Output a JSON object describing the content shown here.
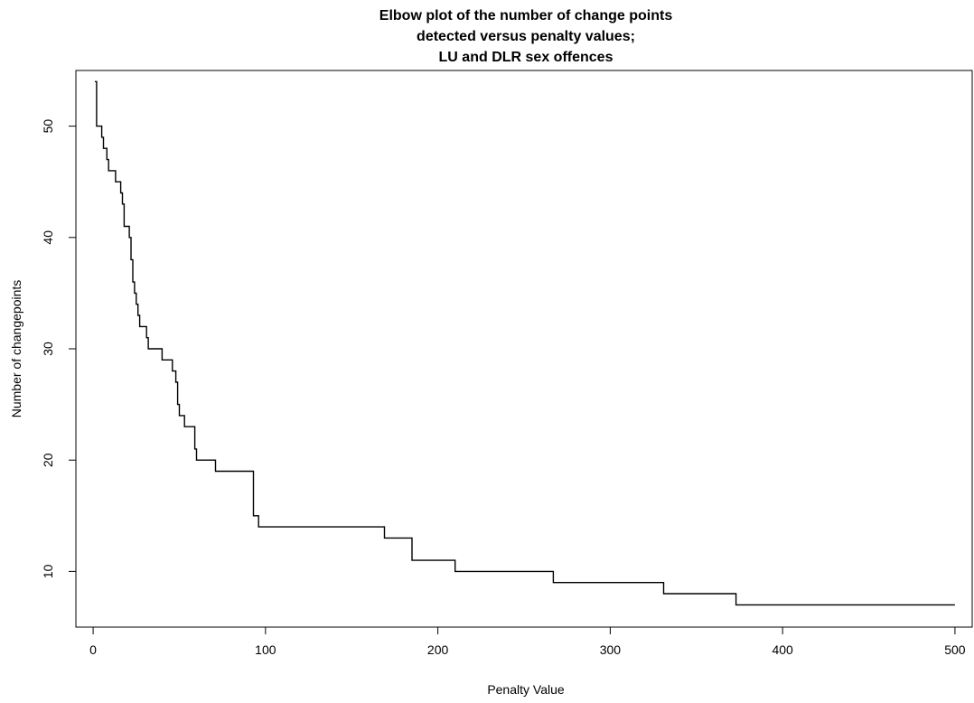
{
  "chart_data": {
    "type": "line",
    "line_style": "step",
    "title_lines": [
      "Elbow plot of the number of change points",
      "detected versus penalty values;",
      "LU and DLR sex offences"
    ],
    "xlabel": "Penalty Value",
    "ylabel": "Number of changepoints",
    "xlim": [
      -10,
      510
    ],
    "ylim": [
      5,
      55
    ],
    "xticks": [
      0,
      100,
      200,
      300,
      400,
      500
    ],
    "yticks": [
      10,
      20,
      30,
      40,
      50
    ],
    "grid": false,
    "series": [
      {
        "color": "#000000",
        "points": [
          [
            1,
            54
          ],
          [
            2,
            50
          ],
          [
            5,
            49
          ],
          [
            6,
            48
          ],
          [
            8,
            47
          ],
          [
            9,
            46
          ],
          [
            13,
            45
          ],
          [
            16,
            44
          ],
          [
            17,
            43
          ],
          [
            18,
            41
          ],
          [
            21,
            40
          ],
          [
            22,
            38
          ],
          [
            23,
            36
          ],
          [
            24,
            35
          ],
          [
            25,
            34
          ],
          [
            26,
            33
          ],
          [
            27,
            32
          ],
          [
            31,
            31
          ],
          [
            32,
            30
          ],
          [
            40,
            29
          ],
          [
            46,
            28
          ],
          [
            48,
            27
          ],
          [
            49,
            25
          ],
          [
            50,
            24
          ],
          [
            53,
            23
          ],
          [
            59,
            21
          ],
          [
            60,
            20
          ],
          [
            71,
            19
          ],
          [
            93,
            15
          ],
          [
            94,
            15
          ],
          [
            96,
            14
          ],
          [
            169,
            13
          ],
          [
            185,
            11
          ],
          [
            210,
            10
          ],
          [
            267,
            9
          ],
          [
            331,
            8
          ],
          [
            373,
            7
          ],
          [
            500,
            7
          ]
        ]
      }
    ]
  }
}
